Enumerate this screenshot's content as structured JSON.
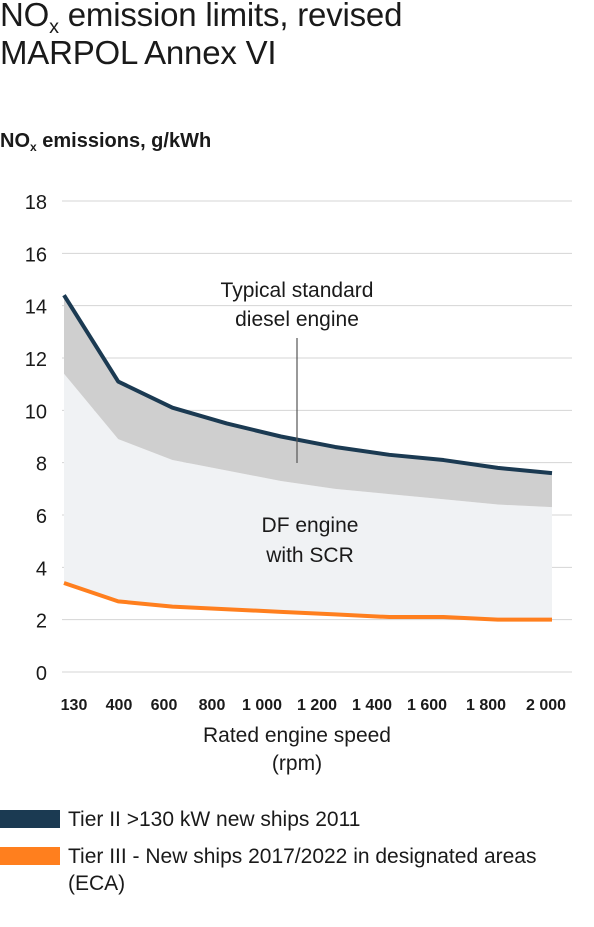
{
  "header": {
    "title_pre": "NO",
    "title_sub": "x",
    "title_line1_rest": " emission limits, revised",
    "title_line2": "MARPOL Annex VI"
  },
  "chart_data": {
    "type": "line",
    "ylabel_pre": "NO",
    "ylabel_sub": "x",
    "ylabel_rest": " emissions, g/kWh",
    "xlabel_line1": "Rated engine speed",
    "xlabel_line2": "(rpm)",
    "categories": [
      "130",
      "400",
      "600",
      "800",
      "1 000",
      "1 200",
      "1 400",
      "1 600",
      "1 800",
      "2 000"
    ],
    "x": [
      130,
      400,
      600,
      800,
      1000,
      1200,
      1400,
      1600,
      1800,
      2000
    ],
    "ylim": [
      0,
      18
    ],
    "yticks": [
      "0",
      "2",
      "4",
      "6",
      "8",
      "10",
      "12",
      "14",
      "16",
      "18"
    ],
    "grid": true,
    "series": [
      {
        "name": "Tier II >130 kW new ships 2011",
        "color": "#1b3a52",
        "values": [
          14.4,
          11.1,
          10.1,
          9.5,
          9.0,
          8.6,
          8.3,
          8.1,
          7.8,
          7.6
        ]
      },
      {
        "name": "Tier III - New ships 2017/2022 in designated areas (ECA)",
        "color": "#ff7f1e",
        "values": [
          3.4,
          2.7,
          2.5,
          2.4,
          2.3,
          2.2,
          2.1,
          2.1,
          2.0,
          2.0
        ]
      }
    ],
    "bands": {
      "typical_diesel_lower": [
        11.4,
        8.9,
        8.1,
        7.7,
        7.3,
        7.0,
        6.8,
        6.6,
        6.4,
        6.3
      ],
      "typical_diesel_color": "#cfcfcf",
      "df_engine_color": "#f0f2f4"
    },
    "annotations": {
      "typical_line1": "Typical standard",
      "typical_line2": "diesel engine",
      "df_line1": "DF engine",
      "df_line2": "with SCR"
    }
  }
}
